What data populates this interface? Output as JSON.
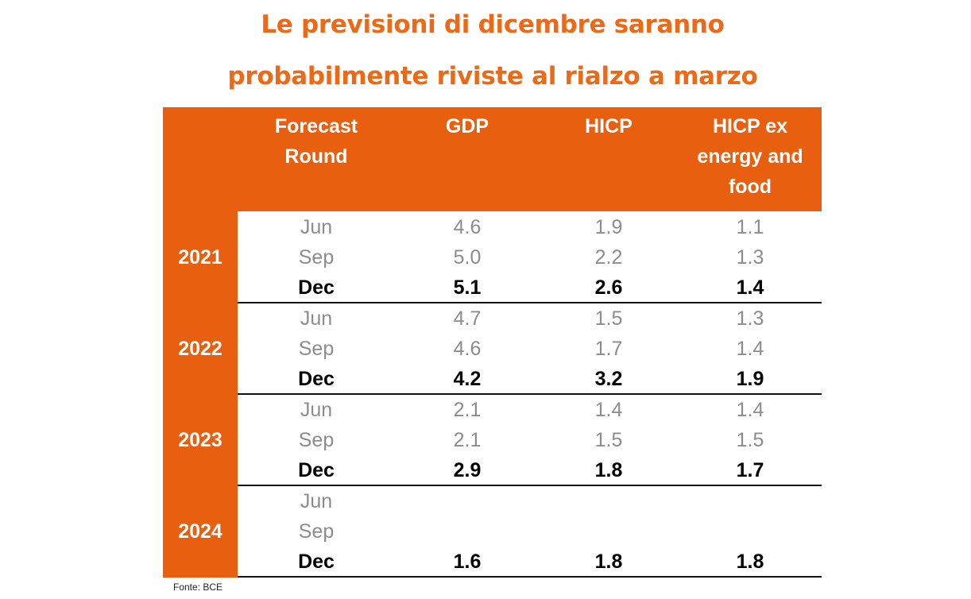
{
  "title": {
    "line1": "Le previsioni di dicembre saranno",
    "line2": "probabilmente riviste al rialzo a marzo"
  },
  "colors": {
    "accent": "#E8600F",
    "title": "#EC6A17",
    "muted_text": "#8c8c8c"
  },
  "table": {
    "headers": {
      "round": [
        "Forecast",
        "Round"
      ],
      "gdp": [
        "GDP"
      ],
      "hicp": [
        "HICP"
      ],
      "hicp_ex": [
        "HICP ex",
        "energy and",
        "food"
      ]
    },
    "groups": [
      {
        "year": "2021",
        "rows": [
          {
            "round": "Jun",
            "gdp": "4.6",
            "hicp": "1.9",
            "hicp_ex": "1.1"
          },
          {
            "round": "Sep",
            "gdp": "5.0",
            "hicp": "2.2",
            "hicp_ex": "1.3"
          },
          {
            "round": "Dec",
            "gdp": "5.1",
            "hicp": "2.6",
            "hicp_ex": "1.4"
          }
        ]
      },
      {
        "year": "2022",
        "rows": [
          {
            "round": "Jun",
            "gdp": "4.7",
            "hicp": "1.5",
            "hicp_ex": "1.3"
          },
          {
            "round": "Sep",
            "gdp": "4.6",
            "hicp": "1.7",
            "hicp_ex": "1.4"
          },
          {
            "round": "Dec",
            "gdp": "4.2",
            "hicp": "3.2",
            "hicp_ex": "1.9"
          }
        ]
      },
      {
        "year": "2023",
        "rows": [
          {
            "round": "Jun",
            "gdp": "2.1",
            "hicp": "1.4",
            "hicp_ex": "1.4"
          },
          {
            "round": "Sep",
            "gdp": "2.1",
            "hicp": "1.5",
            "hicp_ex": "1.5"
          },
          {
            "round": "Dec",
            "gdp": "2.9",
            "hicp": "1.8",
            "hicp_ex": "1.7"
          }
        ]
      },
      {
        "year": "2024",
        "rows": [
          {
            "round": "Jun",
            "gdp": "",
            "hicp": "",
            "hicp_ex": ""
          },
          {
            "round": "Sep",
            "gdp": "",
            "hicp": "",
            "hicp_ex": ""
          },
          {
            "round": "Dec",
            "gdp": "1.6",
            "hicp": "1.8",
            "hicp_ex": "1.8"
          }
        ]
      }
    ]
  },
  "source": "Fonte: BCE"
}
